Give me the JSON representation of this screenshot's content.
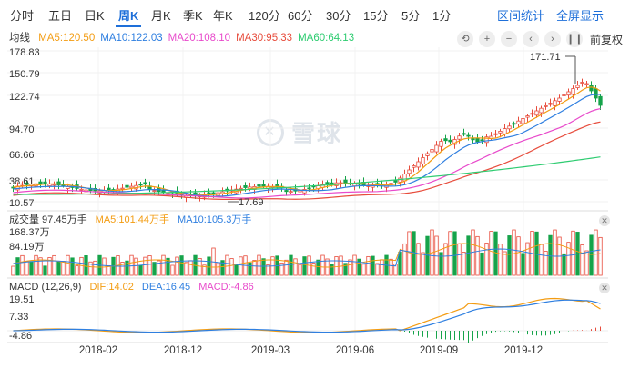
{
  "tabs": [
    "分时",
    "五日",
    "日K",
    "周K",
    "月K",
    "季K",
    "年K",
    "120分",
    "60分",
    "30分",
    "15分",
    "5分",
    "1分"
  ],
  "active_tab": "周K",
  "right_links": {
    "interval": "区间统计",
    "fullscreen": "全屏显示"
  },
  "ma_bar": {
    "label": "均线",
    "items": [
      {
        "text": "MA5:120.50",
        "color": "#f39c12"
      },
      {
        "text": "MA10:122.03",
        "color": "#2f7fe0"
      },
      {
        "text": "MA20:108.10",
        "color": "#e84acb"
      },
      {
        "text": "MA30:95.33",
        "color": "#e74c3c"
      },
      {
        "text": "MA60:64.13",
        "color": "#2ecc71"
      }
    ]
  },
  "toolbar": {
    "fq_label": "前复权",
    "icons": [
      "undo-icon",
      "plus-icon",
      "minus-icon",
      "prev-icon",
      "next-icon",
      "pause-icon"
    ]
  },
  "price_axis": [
    "178.83",
    "150.79",
    "122.74",
    "94.70",
    "66.66",
    "38.61",
    "10.57"
  ],
  "annotations": {
    "high": "171.71",
    "low": "17.69"
  },
  "volume": {
    "title": "成交量 97.45万手",
    "ma5": "MA5:101.44万手",
    "ma10": "MA10:105.3万手",
    "axis": [
      "168.37万",
      "84.19万"
    ]
  },
  "macd": {
    "title": "MACD (12,26,9)",
    "dif": "DIF:14.02",
    "dea": "DEA:16.45",
    "macd": "MACD:-4.86",
    "axis": [
      "19.51",
      "7.33",
      "-4.86"
    ]
  },
  "x_axis": [
    "2018-02",
    "2018-12",
    "2019-03",
    "2019-06",
    "2019-09",
    "2019-12"
  ],
  "watermark": "雪球",
  "colors": {
    "up": "#e74c3c",
    "down": "#16a34a",
    "accent": "#1e6fd9"
  }
}
